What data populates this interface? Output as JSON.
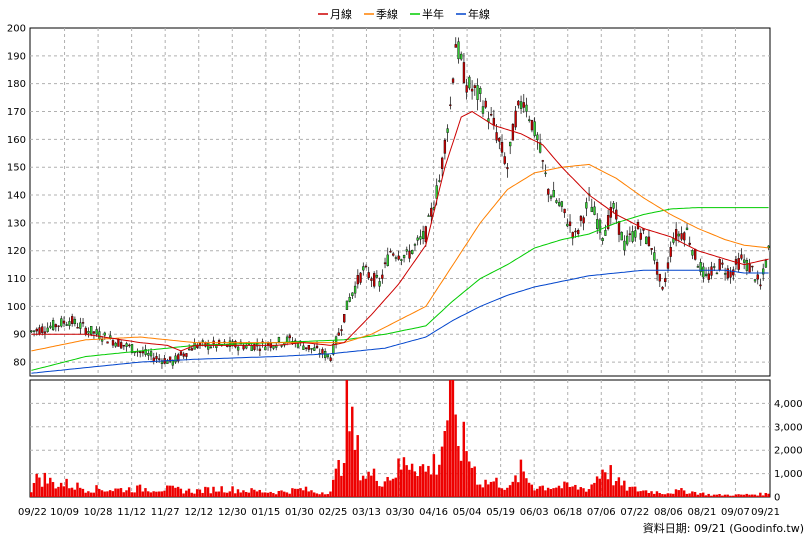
{
  "chart_data": [
    {
      "type": "candlestick",
      "legend": [
        {
          "name": "月線",
          "color": "#cc0000"
        },
        {
          "name": "季線",
          "color": "#ff8000"
        },
        {
          "name": "半年",
          "color": "#00cc00"
        },
        {
          "name": "年線",
          "color": "#0044cc"
        }
      ],
      "ylim": [
        75,
        200
      ],
      "yticks": [
        80,
        90,
        100,
        110,
        120,
        130,
        140,
        150,
        160,
        170,
        180,
        190,
        200
      ],
      "x_labels": [
        "09/22",
        "10/09",
        "10/28",
        "11/12",
        "11/27",
        "12/12",
        "12/30",
        "01/15",
        "01/30",
        "02/25",
        "03/13",
        "03/30",
        "04/16",
        "05/04",
        "05/19",
        "06/03",
        "06/18",
        "07/06",
        "07/22",
        "08/06",
        "08/21",
        "09/07",
        "09/21"
      ],
      "price_keypoints": [
        [
          0,
          91
        ],
        [
          8,
          93
        ],
        [
          14,
          95
        ],
        [
          22,
          91
        ],
        [
          32,
          87
        ],
        [
          44,
          82
        ],
        [
          52,
          80
        ],
        [
          60,
          86
        ],
        [
          70,
          86
        ],
        [
          85,
          86
        ],
        [
          95,
          88
        ],
        [
          105,
          84
        ],
        [
          110,
          82
        ],
        [
          113,
          90
        ],
        [
          117,
          103
        ],
        [
          122,
          113
        ],
        [
          128,
          108
        ],
        [
          132,
          120
        ],
        [
          138,
          118
        ],
        [
          145,
          126
        ],
        [
          150,
          145
        ],
        [
          154,
          172
        ],
        [
          156,
          195
        ],
        [
          160,
          180
        ],
        [
          165,
          175
        ],
        [
          170,
          165
        ],
        [
          175,
          150
        ],
        [
          178,
          168
        ],
        [
          181,
          175
        ],
        [
          186,
          160
        ],
        [
          190,
          142
        ],
        [
          195,
          135
        ],
        [
          200,
          125
        ],
        [
          205,
          138
        ],
        [
          210,
          126
        ],
        [
          214,
          135
        ],
        [
          218,
          122
        ],
        [
          223,
          128
        ],
        [
          228,
          122
        ],
        [
          232,
          105
        ],
        [
          236,
          125
        ],
        [
          241,
          127
        ],
        [
          244,
          118
        ],
        [
          248,
          110
        ],
        [
          253,
          115
        ],
        [
          257,
          112
        ],
        [
          261,
          117
        ],
        [
          265,
          113
        ],
        [
          268,
          107
        ],
        [
          271,
          120
        ]
      ],
      "ma_month": [
        [
          0,
          90
        ],
        [
          20,
          90
        ],
        [
          40,
          87
        ],
        [
          50,
          86
        ],
        [
          55,
          84
        ],
        [
          60,
          86
        ],
        [
          90,
          86
        ],
        [
          100,
          87
        ],
        [
          110,
          86
        ],
        [
          115,
          87
        ],
        [
          125,
          97
        ],
        [
          135,
          108
        ],
        [
          145,
          122
        ],
        [
          152,
          150
        ],
        [
          158,
          168
        ],
        [
          162,
          170
        ],
        [
          170,
          165
        ],
        [
          180,
          162
        ],
        [
          188,
          158
        ],
        [
          195,
          150
        ],
        [
          205,
          140
        ],
        [
          215,
          133
        ],
        [
          225,
          128
        ],
        [
          235,
          125
        ],
        [
          245,
          120
        ],
        [
          255,
          117
        ],
        [
          262,
          115
        ],
        [
          271,
          117
        ]
      ],
      "ma_quarter": [
        [
          0,
          84
        ],
        [
          20,
          88
        ],
        [
          40,
          89
        ],
        [
          60,
          87
        ],
        [
          90,
          87
        ],
        [
          115,
          87
        ],
        [
          125,
          90
        ],
        [
          135,
          95
        ],
        [
          145,
          100
        ],
        [
          155,
          115
        ],
        [
          165,
          130
        ],
        [
          175,
          142
        ],
        [
          185,
          148
        ],
        [
          195,
          150
        ],
        [
          205,
          151
        ],
        [
          215,
          146
        ],
        [
          225,
          139
        ],
        [
          235,
          133
        ],
        [
          245,
          128
        ],
        [
          255,
          124
        ],
        [
          262,
          122
        ],
        [
          271,
          121
        ]
      ],
      "ma_half": [
        [
          0,
          77
        ],
        [
          20,
          82
        ],
        [
          40,
          84
        ],
        [
          60,
          86
        ],
        [
          90,
          87
        ],
        [
          115,
          88
        ],
        [
          130,
          90
        ],
        [
          145,
          93
        ],
        [
          155,
          102
        ],
        [
          165,
          110
        ],
        [
          175,
          115
        ],
        [
          185,
          121
        ],
        [
          195,
          124
        ],
        [
          205,
          126
        ],
        [
          215,
          130
        ],
        [
          225,
          133
        ],
        [
          235,
          135
        ],
        [
          245,
          135.5
        ],
        [
          262,
          135.5
        ],
        [
          271,
          135.5
        ]
      ],
      "ma_year": [
        [
          0,
          76
        ],
        [
          20,
          78
        ],
        [
          40,
          80
        ],
        [
          60,
          81
        ],
        [
          90,
          82
        ],
        [
          110,
          83
        ],
        [
          130,
          85
        ],
        [
          145,
          89
        ],
        [
          155,
          95
        ],
        [
          165,
          100
        ],
        [
          175,
          104
        ],
        [
          185,
          107
        ],
        [
          195,
          109
        ],
        [
          205,
          111
        ],
        [
          215,
          112
        ],
        [
          225,
          113
        ],
        [
          235,
          113
        ],
        [
          245,
          113
        ],
        [
          255,
          113
        ],
        [
          262,
          112
        ],
        [
          271,
          112
        ]
      ],
      "volume_ylim": [
        0,
        5000
      ],
      "volume_yticks": [
        0,
        1000,
        2000,
        3000,
        4000
      ],
      "volume_tick_labels": [
        "0",
        "1,000",
        "2,000",
        "3,000",
        "4,000"
      ],
      "volume_keypoints": [
        [
          0,
          400
        ],
        [
          3,
          1000
        ],
        [
          8,
          650
        ],
        [
          14,
          600
        ],
        [
          20,
          400
        ],
        [
          30,
          350
        ],
        [
          40,
          400
        ],
        [
          50,
          380
        ],
        [
          60,
          280
        ],
        [
          70,
          400
        ],
        [
          80,
          300
        ],
        [
          90,
          230
        ],
        [
          100,
          370
        ],
        [
          105,
          200
        ],
        [
          110,
          280
        ],
        [
          114,
          1700
        ],
        [
          116,
          4500
        ],
        [
          118,
          3000
        ],
        [
          122,
          1100
        ],
        [
          130,
          850
        ],
        [
          135,
          1300
        ],
        [
          140,
          1900
        ],
        [
          145,
          1200
        ],
        [
          150,
          1800
        ],
        [
          154,
          4800
        ],
        [
          156,
          3000
        ],
        [
          160,
          2200
        ],
        [
          165,
          700
        ],
        [
          172,
          700
        ],
        [
          176,
          400
        ],
        [
          180,
          1200
        ],
        [
          185,
          500
        ],
        [
          195,
          500
        ],
        [
          205,
          400
        ],
        [
          211,
          1500
        ],
        [
          215,
          700
        ],
        [
          220,
          400
        ],
        [
          225,
          300
        ],
        [
          233,
          200
        ],
        [
          240,
          300
        ],
        [
          250,
          100
        ],
        [
          260,
          100
        ],
        [
          271,
          150
        ]
      ],
      "footer": "資料日期: 09/21 (Goodinfo.tw)"
    }
  ]
}
